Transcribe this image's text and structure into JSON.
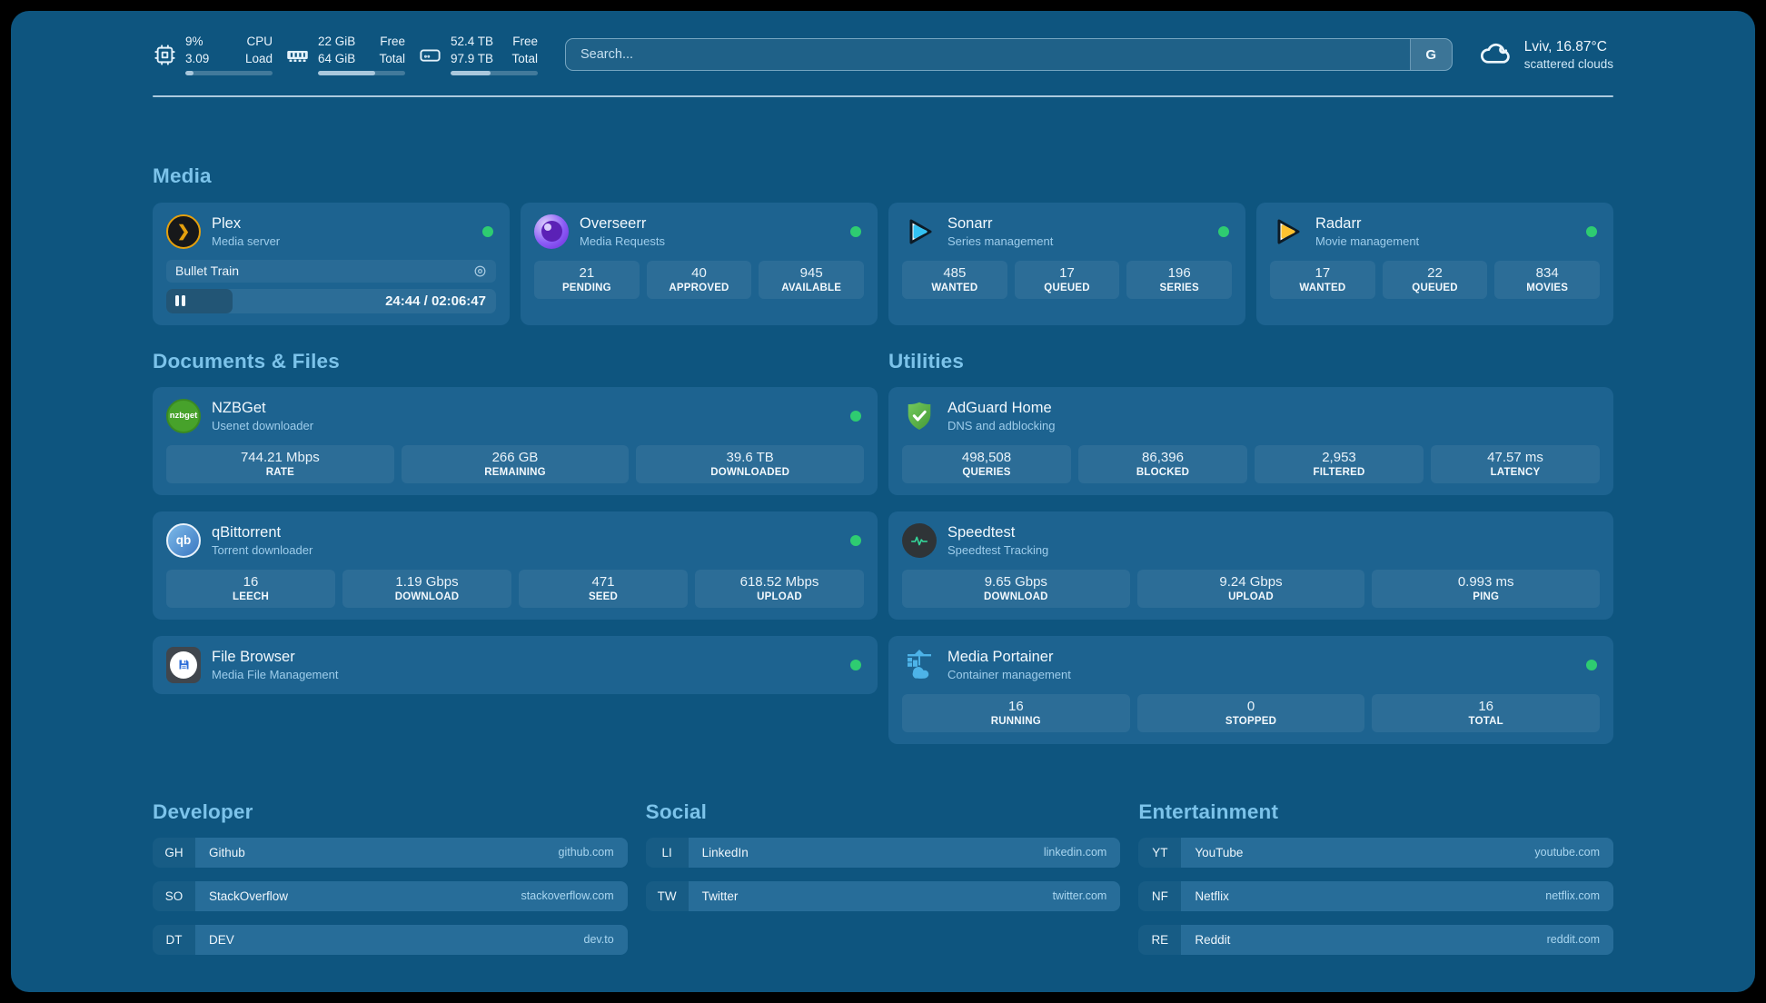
{
  "colors": {
    "panel_bg": "#0e557f",
    "card_bg": "#1d6390",
    "section_title": "#7cc3ea",
    "status_online": "#2ecc71",
    "plex_gold": "#e5a00d",
    "sonarr_blue": "#33c2f3",
    "radarr_amber": "#ffc230"
  },
  "topbar": {
    "resources": [
      {
        "icon": "cpu-icon",
        "col1": [
          "9%",
          "3.09"
        ],
        "col2": [
          "CPU",
          "Load"
        ],
        "progress": 9
      },
      {
        "icon": "ram-icon",
        "col1": [
          "22 GiB",
          "64 GiB"
        ],
        "col2": [
          "Free",
          "Total"
        ],
        "progress": 66
      },
      {
        "icon": "disk-icon",
        "col1": [
          "52.4 TB",
          "97.9 TB"
        ],
        "col2": [
          "Free",
          "Total"
        ],
        "progress": 46
      }
    ],
    "search": {
      "placeholder": "Search...",
      "provider": "G"
    },
    "weather": {
      "summary": "Lviv, 16.87°C",
      "condition": "scattered clouds"
    }
  },
  "media": {
    "title": "Media",
    "plex": {
      "name": "Plex",
      "desc": "Media server",
      "icon_text": "❯",
      "now_playing": "Bullet Train",
      "time": "24:44 / 02:06:47",
      "progress": 20
    },
    "overseerr": {
      "name": "Overseerr",
      "desc": "Media Requests",
      "stats": [
        {
          "value": "21",
          "label": "PENDING"
        },
        {
          "value": "40",
          "label": "APPROVED"
        },
        {
          "value": "945",
          "label": "AVAILABLE"
        }
      ]
    },
    "sonarr": {
      "name": "Sonarr",
      "desc": "Series management",
      "stats": [
        {
          "value": "485",
          "label": "WANTED"
        },
        {
          "value": "17",
          "label": "QUEUED"
        },
        {
          "value": "196",
          "label": "SERIES"
        }
      ]
    },
    "radarr": {
      "name": "Radarr",
      "desc": "Movie management",
      "stats": [
        {
          "value": "17",
          "label": "WANTED"
        },
        {
          "value": "22",
          "label": "QUEUED"
        },
        {
          "value": "834",
          "label": "MOVIES"
        }
      ]
    }
  },
  "documents": {
    "title": "Documents & Files",
    "nzbget": {
      "name": "NZBGet",
      "desc": "Usenet downloader",
      "icon_text": "nzbget",
      "stats": [
        {
          "value": "744.21 Mbps",
          "label": "RATE"
        },
        {
          "value": "266 GB",
          "label": "REMAINING"
        },
        {
          "value": "39.6 TB",
          "label": "DOWNLOADED"
        }
      ]
    },
    "qbittorrent": {
      "name": "qBittorrent",
      "desc": "Torrent downloader",
      "icon_text": "qb",
      "stats": [
        {
          "value": "16",
          "label": "LEECH"
        },
        {
          "value": "1.19 Gbps",
          "label": "DOWNLOAD"
        },
        {
          "value": "471",
          "label": "SEED"
        },
        {
          "value": "618.52 Mbps",
          "label": "UPLOAD"
        }
      ]
    },
    "filebrowser": {
      "name": "File Browser",
      "desc": "Media File Management"
    }
  },
  "utilities": {
    "title": "Utilities",
    "adguard": {
      "name": "AdGuard Home",
      "desc": "DNS and adblocking",
      "stats": [
        {
          "value": "498,508",
          "label": "QUERIES"
        },
        {
          "value": "86,396",
          "label": "BLOCKED"
        },
        {
          "value": "2,953",
          "label": "FILTERED"
        },
        {
          "value": "47.57 ms",
          "label": "LATENCY"
        }
      ]
    },
    "speedtest": {
      "name": "Speedtest",
      "desc": "Speedtest Tracking",
      "stats": [
        {
          "value": "9.65 Gbps",
          "label": "DOWNLOAD"
        },
        {
          "value": "9.24 Gbps",
          "label": "UPLOAD"
        },
        {
          "value": "0.993 ms",
          "label": "PING"
        }
      ]
    },
    "portainer": {
      "name": "Media Portainer",
      "desc": "Container management",
      "stats": [
        {
          "value": "16",
          "label": "RUNNING"
        },
        {
          "value": "0",
          "label": "STOPPED"
        },
        {
          "value": "16",
          "label": "TOTAL"
        }
      ]
    }
  },
  "bookmarks": [
    {
      "title": "Developer",
      "items": [
        {
          "abbr": "GH",
          "name": "Github",
          "domain": "github.com"
        },
        {
          "abbr": "SO",
          "name": "StackOverflow",
          "domain": "stackoverflow.com"
        },
        {
          "abbr": "DT",
          "name": "DEV",
          "domain": "dev.to"
        }
      ]
    },
    {
      "title": "Social",
      "items": [
        {
          "abbr": "LI",
          "name": "LinkedIn",
          "domain": "linkedin.com"
        },
        {
          "abbr": "TW",
          "name": "Twitter",
          "domain": "twitter.com"
        }
      ]
    },
    {
      "title": "Entertainment",
      "items": [
        {
          "abbr": "YT",
          "name": "YouTube",
          "domain": "youtube.com"
        },
        {
          "abbr": "NF",
          "name": "Netflix",
          "domain": "netflix.com"
        },
        {
          "abbr": "RE",
          "name": "Reddit",
          "domain": "reddit.com"
        }
      ]
    }
  ]
}
